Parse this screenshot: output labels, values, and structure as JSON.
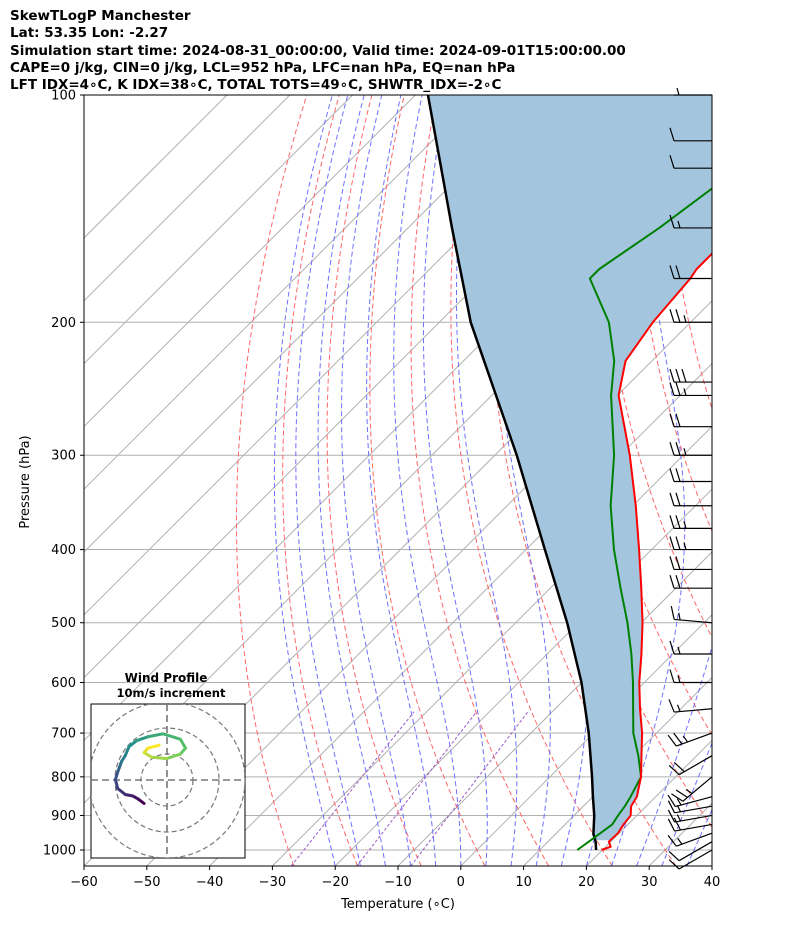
{
  "header": {
    "line1": "SkewTLogP Manchester",
    "line2": "Lat: 53.35   Lon: -2.27",
    "line3": "Simulation start time: 2024-08-31_00:00:00, Valid time: 2024-09-01T15:00:00.00",
    "line4": "CAPE=0 j/kg, CIN=0 j/kg, LCL=952 hPa, LFC=nan hPa, EQ=nan hPa",
    "line5": "LFT IDX=4∘C, K IDX=38∘C, TOTAL TOTS=49∘C, SHWTR_IDX=-2∘C"
  },
  "chart_data": {
    "type": "line",
    "title": "SkewTLogP Manchester",
    "xlabel": "Temperature (∘C)",
    "ylabel": "Pressure (hPa)",
    "x_ticks": [
      -60,
      -50,
      -40,
      -30,
      -20,
      -10,
      0,
      10,
      20,
      30,
      40
    ],
    "y_ticks": [
      100,
      200,
      300,
      400,
      500,
      600,
      700,
      800,
      900,
      1000
    ],
    "xlim": [
      -60,
      40
    ],
    "ylim": [
      1050,
      100
    ],
    "y_scale": "log",
    "grid": true,
    "colors": {
      "temperature": "#ff0000",
      "dewpoint": "#008000",
      "parcel": "#000000",
      "shade": "#a3c6de",
      "dry_adiabat": "#ff6666",
      "moist_adiabat": "#6f6fff",
      "mixing_ratio": "#9b59c9",
      "grid": "#b0b0b0"
    },
    "series": [
      {
        "key": "temperature",
        "p": [
          1000,
          990,
          975,
          950,
          925,
          900,
          875,
          850,
          800,
          750,
          700,
          650,
          600,
          550,
          500,
          450,
          400,
          350,
          300,
          250,
          225,
          200,
          175,
          170,
          150,
          125,
          100
        ],
        "t": [
          19.9,
          20.8,
          19.7,
          19.8,
          19.3,
          19.0,
          17.6,
          17.0,
          14.5,
          11.2,
          7.7,
          3.5,
          -0.8,
          -5.0,
          -9.8,
          -15.5,
          -22.0,
          -29.5,
          -38.5,
          -49.8,
          -54.2,
          -56.0,
          -57.0,
          -57.5,
          -57.5,
          -58.0,
          -58.3
        ]
      },
      {
        "key": "dewpoint",
        "p": [
          1000,
          975,
          950,
          925,
          900,
          875,
          850,
          800,
          750,
          700,
          650,
          600,
          550,
          500,
          450,
          400,
          350,
          300,
          250,
          225,
          200,
          175,
          170,
          150,
          125,
          100
        ],
        "t": [
          16.0,
          16.5,
          17.0,
          17.5,
          17.0,
          16.6,
          16.0,
          14.5,
          10.7,
          6.3,
          2.4,
          -1.8,
          -6.6,
          -12.2,
          -18.8,
          -26.0,
          -33.5,
          -41.0,
          -51.0,
          -56.0,
          -63.0,
          -73.0,
          -73.0,
          -70.0,
          -66.8,
          -63.3
        ]
      },
      {
        "key": "parcel",
        "p": [
          1000,
          975,
          952,
          900,
          850,
          800,
          700,
          600,
          500,
          400,
          300,
          200,
          150,
          100
        ],
        "t": [
          19.0,
          17.6,
          16.0,
          13.2,
          10.0,
          6.7,
          -0.8,
          -10.0,
          -21.8,
          -37.0,
          -56.5,
          -85.0,
          -103.0,
          -128.0
        ]
      }
    ],
    "wind_barbs": {
      "p": [
        1000,
        975,
        950,
        925,
        900,
        875,
        850,
        800,
        750,
        700,
        650,
        600,
        550,
        500,
        450,
        425,
        400,
        375,
        350,
        325,
        300,
        275,
        250,
        240,
        200,
        175,
        150,
        125,
        115,
        100
      ],
      "speed_kt": [
        10,
        10,
        15,
        20,
        15,
        15,
        15,
        25,
        20,
        25,
        15,
        15,
        15,
        15,
        20,
        20,
        25,
        25,
        20,
        20,
        25,
        20,
        25,
        30,
        25,
        20,
        15,
        10,
        10,
        5
      ],
      "dir_deg": [
        240,
        240,
        250,
        260,
        260,
        260,
        255,
        230,
        240,
        250,
        265,
        270,
        270,
        275,
        270,
        270,
        270,
        270,
        270,
        270,
        270,
        270,
        270,
        270,
        270,
        270,
        270,
        270,
        270,
        270
      ]
    },
    "hodograph": {
      "title": "Wind Profile",
      "subtitle": "10m/s increment",
      "u": [
        2.0,
        1.2,
        0.5,
        -0.5,
        -1.5,
        -1.8,
        -1.5,
        -1.2,
        -1.0,
        -0.5,
        0.0,
        1.0,
        2.5,
        4.5,
        6.8,
        7.5,
        6.8,
        5.0,
        3.0,
        2.0,
        2.5,
        4.0
      ],
      "v": [
        -4.5,
        -3.0,
        -2.0,
        -1.5,
        0.5,
        3.5,
        6.0,
        8.0,
        9.5,
        11.5,
        14.5,
        16.5,
        17.8,
        18.8,
        17.0,
        14.0,
        12.0,
        10.5,
        11.0,
        12.5,
        14.0,
        15.0
      ],
      "rings_ms": [
        10,
        20,
        30
      ]
    }
  }
}
